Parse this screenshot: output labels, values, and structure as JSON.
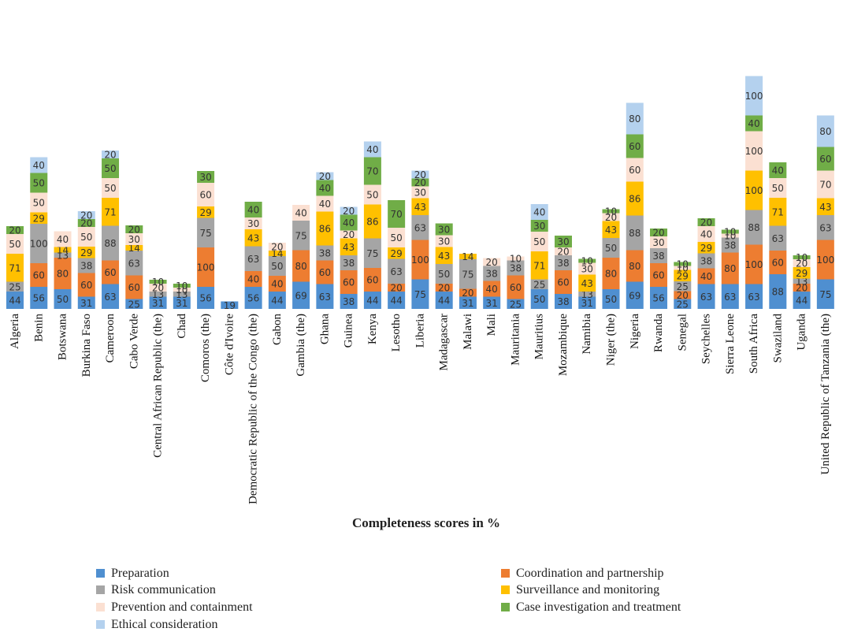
{
  "chart_data": {
    "type": "bar",
    "stacked": true,
    "title": "",
    "xlabel": "Completeness scores in %",
    "ylabel": "",
    "categories": [
      "Algeria",
      "Benin",
      "Botswana",
      "Burkina Faso",
      "Cameroon",
      "Cabo Verde",
      "Central African Republic (the)",
      "Chad",
      "Comoros (the)",
      "Côte d'Ivoire",
      "Democratic Republic of the Congo (the)",
      "Gabon",
      "Gambia (the)",
      "Ghana",
      "Guinea",
      "Kenya",
      "Lesotho",
      "Liberia",
      "Madagascar",
      "Malawi",
      "Mali",
      "Mauritania",
      "Mauritius",
      "Mozambique",
      "Namibia",
      "Niger (the)",
      "Nigeria",
      "Rwanda",
      "Senegal",
      "Seychelles",
      "Sierra Leone",
      "South Africa",
      "Swaziland",
      "Uganda",
      "United Republic of Tanzania (the)"
    ],
    "series": [
      {
        "name": "Preparation",
        "color": "#4f8fd0",
        "values": [
          44,
          56,
          50,
          31,
          63,
          25,
          31,
          31,
          56,
          19,
          56,
          44,
          69,
          63,
          38,
          44,
          44,
          75,
          44,
          31,
          31,
          25,
          50,
          38,
          31,
          50,
          69,
          56,
          25,
          63,
          63,
          63,
          88,
          44,
          75
        ]
      },
      {
        "name": "Coordination and partnership",
        "color": "#ed7d31",
        "values": [
          0,
          60,
          80,
          60,
          60,
          60,
          0,
          0,
          100,
          0,
          40,
          40,
          80,
          60,
          60,
          60,
          20,
          100,
          20,
          20,
          40,
          60,
          0,
          60,
          0,
          80,
          80,
          60,
          20,
          40,
          80,
          100,
          60,
          20,
          100
        ]
      },
      {
        "name": "Risk communication",
        "color": "#a5a5a5",
        "values": [
          25,
          100,
          13,
          38,
          88,
          63,
          13,
          13,
          75,
          0,
          63,
          50,
          75,
          38,
          38,
          75,
          63,
          63,
          50,
          75,
          38,
          38,
          25,
          38,
          13,
          50,
          88,
          38,
          25,
          38,
          38,
          88,
          63,
          13,
          63
        ]
      },
      {
        "name": "Surveillance and monitoring",
        "color": "#ffc000",
        "values": [
          71,
          29,
          14,
          29,
          71,
          14,
          0,
          0,
          29,
          0,
          43,
          14,
          0,
          86,
          43,
          86,
          29,
          43,
          43,
          14,
          0,
          0,
          71,
          0,
          43,
          43,
          86,
          0,
          29,
          29,
          0,
          100,
          71,
          29,
          43
        ]
      },
      {
        "name": "Prevention and containment",
        "color": "#fbe0d2",
        "values": [
          50,
          50,
          40,
          50,
          50,
          30,
          20,
          10,
          60,
          0,
          30,
          20,
          40,
          40,
          20,
          50,
          50,
          30,
          30,
          0,
          20,
          10,
          50,
          20,
          30,
          20,
          60,
          30,
          10,
          40,
          10,
          100,
          50,
          20,
          70
        ]
      },
      {
        "name": "Case investigation and treatment",
        "color": "#70ad47",
        "values": [
          20,
          50,
          0,
          20,
          50,
          20,
          10,
          10,
          30,
          0,
          40,
          0,
          0,
          40,
          40,
          70,
          70,
          20,
          30,
          0,
          0,
          0,
          30,
          30,
          10,
          10,
          60,
          20,
          10,
          20,
          10,
          40,
          40,
          10,
          60
        ]
      },
      {
        "name": "Ethical consideration",
        "color": "#b4d1ee",
        "values": [
          0,
          40,
          0,
          20,
          20,
          0,
          0,
          0,
          0,
          0,
          0,
          0,
          0,
          20,
          20,
          40,
          0,
          20,
          0,
          0,
          0,
          0,
          40,
          0,
          0,
          0,
          80,
          0,
          0,
          0,
          0,
          100,
          0,
          0,
          80
        ]
      }
    ]
  }
}
